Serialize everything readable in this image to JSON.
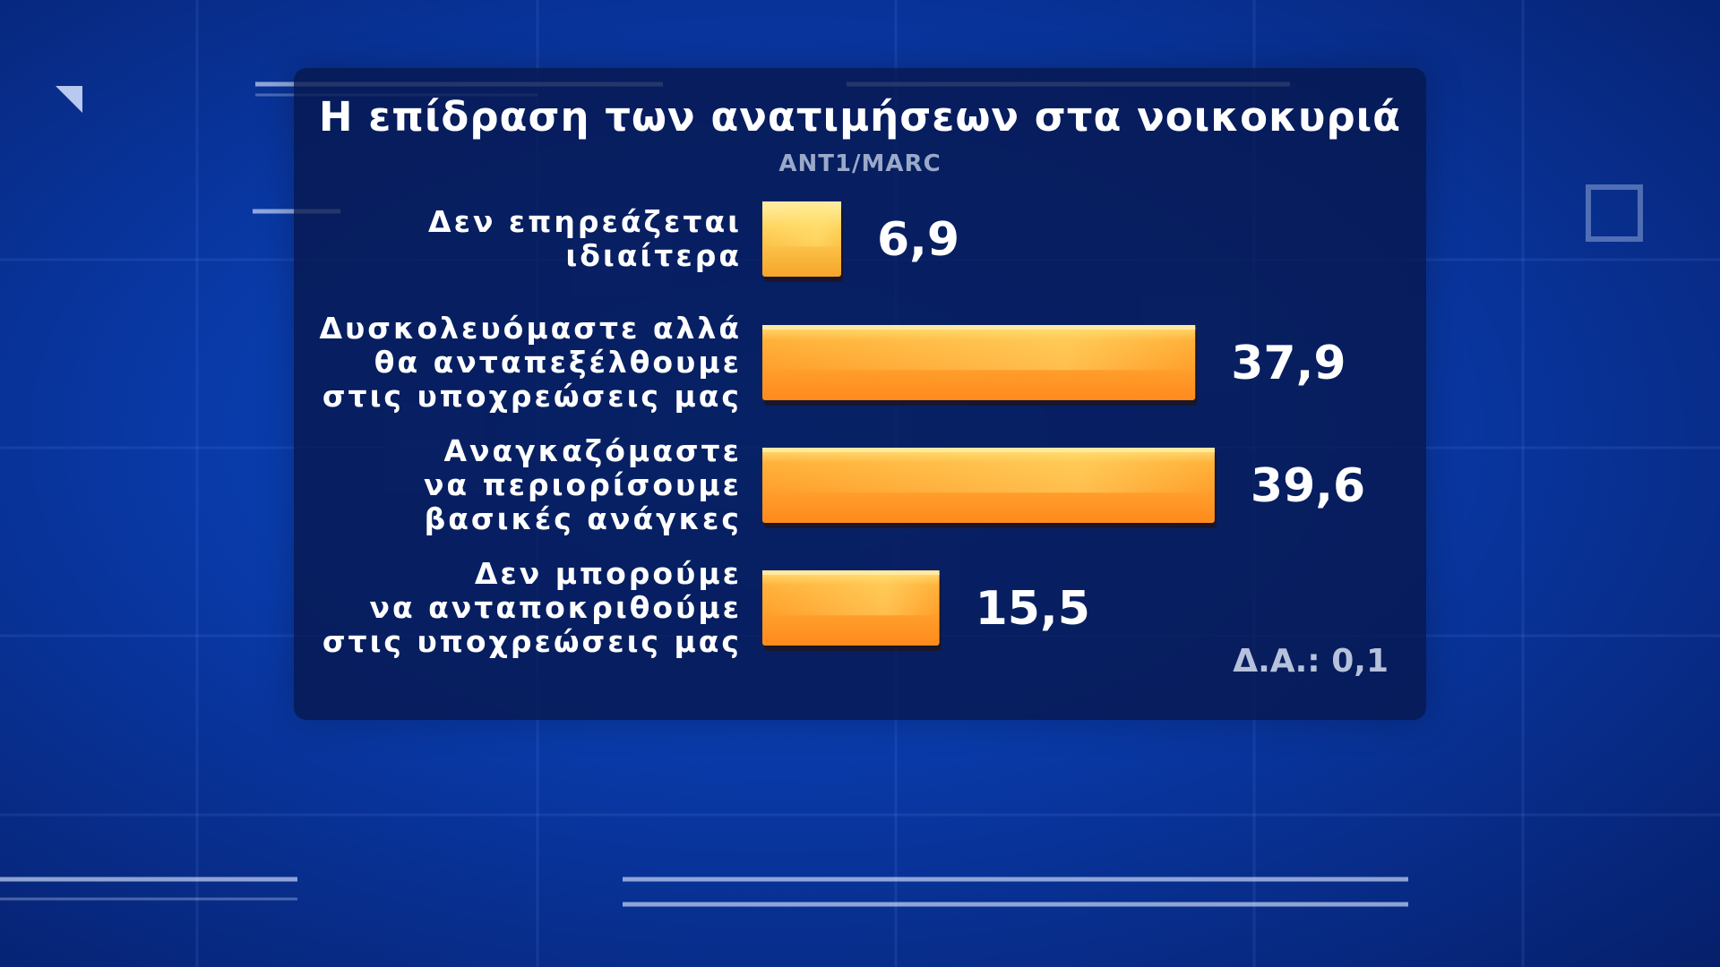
{
  "chart_data": {
    "type": "bar",
    "orientation": "horizontal",
    "title": "Η επίδραση των ανατιμήσεων στα νοικοκυριά",
    "subtitle": "ANT1/MARC",
    "xlim": [
      0,
      42
    ],
    "categories": [
      [
        "Δεν επηρεάζεται",
        "ιδιαίτερα"
      ],
      [
        "Δυσκολευόμαστε αλλά",
        "θα ανταπεξέλθουμε",
        "στις υποχρεώσεις μας"
      ],
      [
        "Αναγκαζόμαστε",
        "να περιορίσουμε",
        "βασικές ανάγκες"
      ],
      [
        "Δεν μπορούμε",
        "να ανταποκριθούμε",
        "στις υποχρεώσεις μας"
      ]
    ],
    "values": [
      6.9,
      37.9,
      39.6,
      15.5
    ],
    "value_labels": [
      "6,9",
      "37,9",
      "39,6",
      "15,5"
    ],
    "note": "Δ.Α.: 0,1",
    "colors": {
      "bar_light": "#ffd35c",
      "bar_mid": "#ffb23a",
      "bar_dark": "#ff8a1c",
      "bar_shadow": "#8a3d05"
    }
  }
}
